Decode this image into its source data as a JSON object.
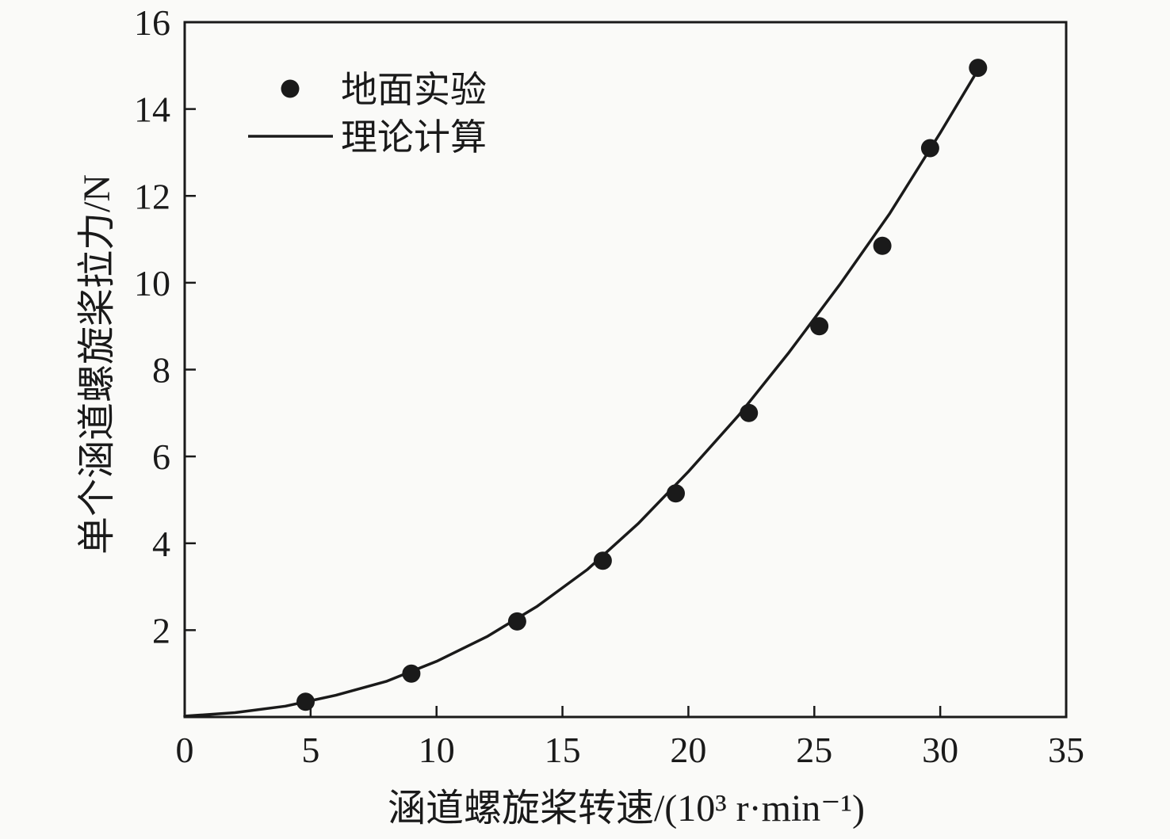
{
  "colors": {
    "ink": "#1a1a1a",
    "background": "#fafaf8"
  },
  "chart_data": {
    "type": "scatter",
    "title": "",
    "xlabel": "涵道螺旋桨转速/(10³ r·min⁻¹)",
    "ylabel": "单个涵道螺旋桨拉力/N",
    "xlim": [
      0,
      35
    ],
    "ylim": [
      0,
      16
    ],
    "xticks": [
      0,
      5,
      10,
      15,
      20,
      25,
      30,
      35
    ],
    "yticks": [
      2,
      4,
      6,
      8,
      10,
      12,
      14,
      16
    ],
    "grid": false,
    "legend_position": "upper-left-inside",
    "legend": [
      {
        "label": "地面实验",
        "marker": "dot"
      },
      {
        "label": "理论计算",
        "marker": "line"
      }
    ],
    "series": [
      {
        "name": "地面实验",
        "type": "scatter",
        "points": [
          [
            4.8,
            0.35
          ],
          [
            9.0,
            1.0
          ],
          [
            13.2,
            2.2
          ],
          [
            16.6,
            3.6
          ],
          [
            19.5,
            5.15
          ],
          [
            22.4,
            7.0
          ],
          [
            25.2,
            9.0
          ],
          [
            27.7,
            10.85
          ],
          [
            29.6,
            13.1
          ],
          [
            31.5,
            14.95
          ]
        ]
      },
      {
        "name": "理论计算",
        "type": "line",
        "points": [
          [
            0,
            0.02
          ],
          [
            2,
            0.1
          ],
          [
            4,
            0.25
          ],
          [
            6,
            0.5
          ],
          [
            8,
            0.82
          ],
          [
            10,
            1.28
          ],
          [
            12,
            1.85
          ],
          [
            14,
            2.55
          ],
          [
            16,
            3.4
          ],
          [
            18,
            4.45
          ],
          [
            20,
            5.65
          ],
          [
            22,
            6.95
          ],
          [
            24,
            8.4
          ],
          [
            26,
            9.95
          ],
          [
            28,
            11.6
          ],
          [
            30,
            13.45
          ],
          [
            31.6,
            15.0
          ]
        ]
      }
    ]
  }
}
